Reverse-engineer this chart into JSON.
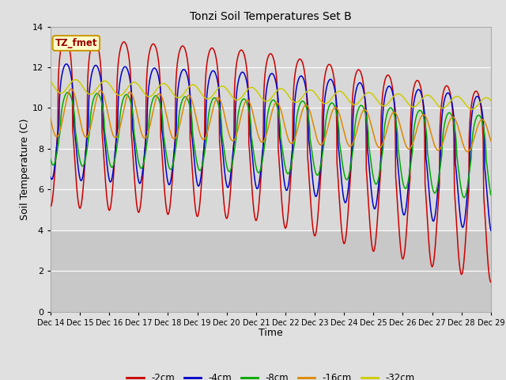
{
  "title": "Tonzi Soil Temperatures Set B",
  "xlabel": "Time",
  "ylabel": "Soil Temperature (C)",
  "ylim": [
    0,
    14
  ],
  "yticks": [
    0,
    2,
    4,
    6,
    8,
    10,
    12,
    14
  ],
  "xtick_labels": [
    "Dec 14",
    "Dec 15",
    "Dec 16",
    "Dec 17",
    "Dec 18",
    "Dec 19",
    "Dec 20",
    "Dec 21",
    "Dec 22",
    "Dec 23",
    "Dec 24",
    "Dec 25",
    "Dec 26",
    "Dec 27",
    "Dec 28",
    "Dec 29"
  ],
  "bg_color": "#e0e0e0",
  "plot_bg_upper": "#d8d8d8",
  "plot_bg_lower": "#cccccc",
  "grid_color": "#ffffff",
  "label_box_color": "#ffffcc",
  "label_box_edge": "#cc9900",
  "label_text": "TZ_fmet",
  "label_text_color": "#990000",
  "colors": {
    "-2cm": "#cc0000",
    "-4cm": "#0000cc",
    "-8cm": "#00aa00",
    "-16cm": "#dd8800",
    "-32cm": "#cccc00"
  },
  "legend_labels": [
    "-2cm",
    "-4cm",
    "-8cm",
    "-16cm",
    "-32cm"
  ],
  "n_days": 15,
  "n_per_day": 96
}
